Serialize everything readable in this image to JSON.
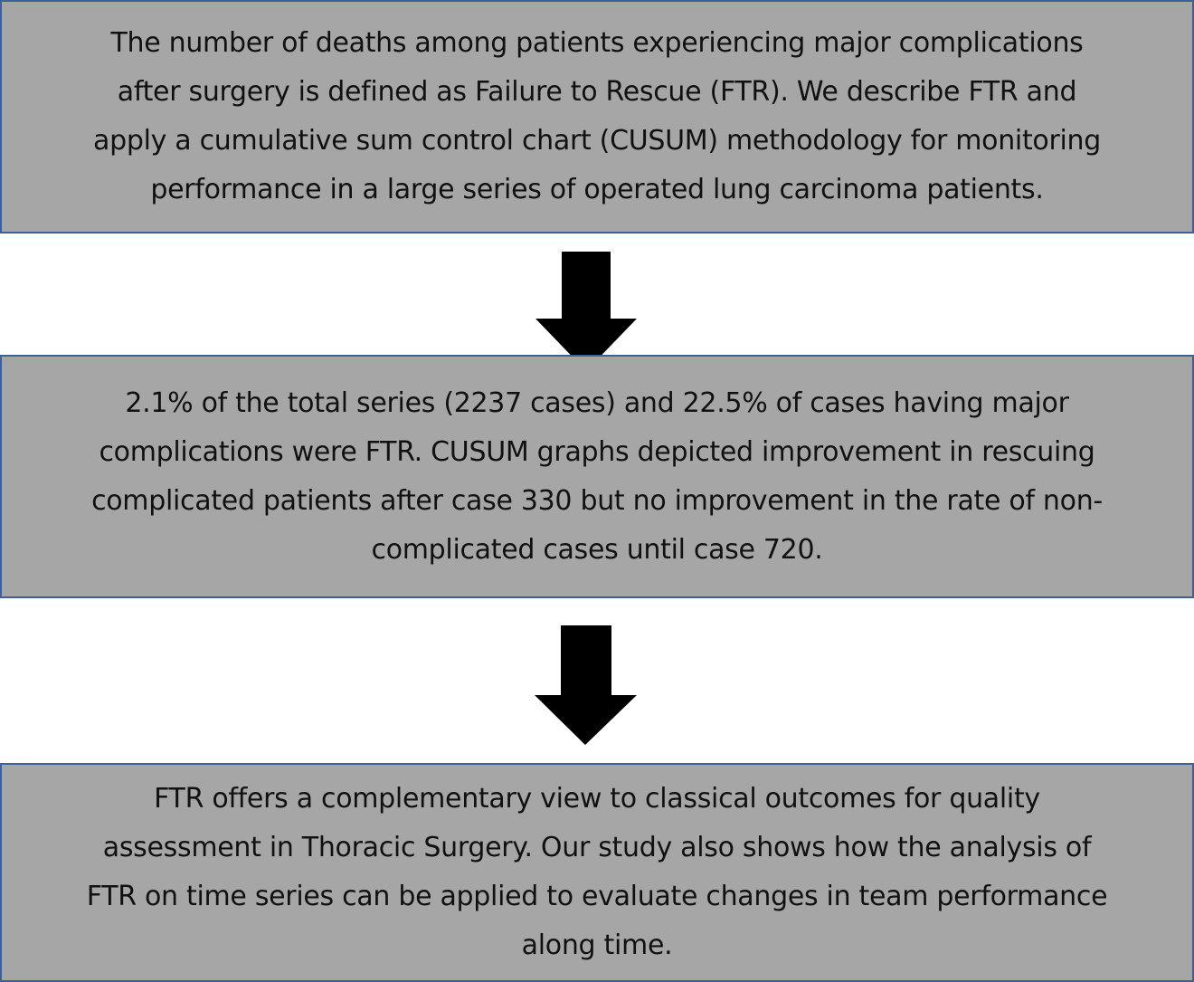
{
  "boxes": [
    {
      "lines": [
        "The number of deaths among patients experiencing major complications",
        "after surgery is defined as Failure to Rescue (FTR). We describe FTR and",
        "apply a cumulative sum control chart (CUSUM) methodology for monitoring",
        "performance in a large series of operated lung carcinoma patients."
      ]
    },
    {
      "lines": [
        "2.1% of the total series (2237 cases) and 22.5% of cases having major",
        "complications were FTR. CUSUM graphs depicted improvement in rescuing",
        "complicated patients after case 330 but no improvement in the rate of non-",
        "complicated cases until case 720."
      ]
    },
    {
      "lines": [
        "FTR offers a complementary view to classical outcomes for quality",
        "assessment in Thoracic Surgery. Our study also shows how the analysis of",
        "FTR on time series can be applied to evaluate changes in team performance",
        "along time."
      ]
    }
  ],
  "colors": {
    "box_fill": "#a6a6a6",
    "box_border": "#3f5f9a",
    "arrow": "#000000"
  }
}
